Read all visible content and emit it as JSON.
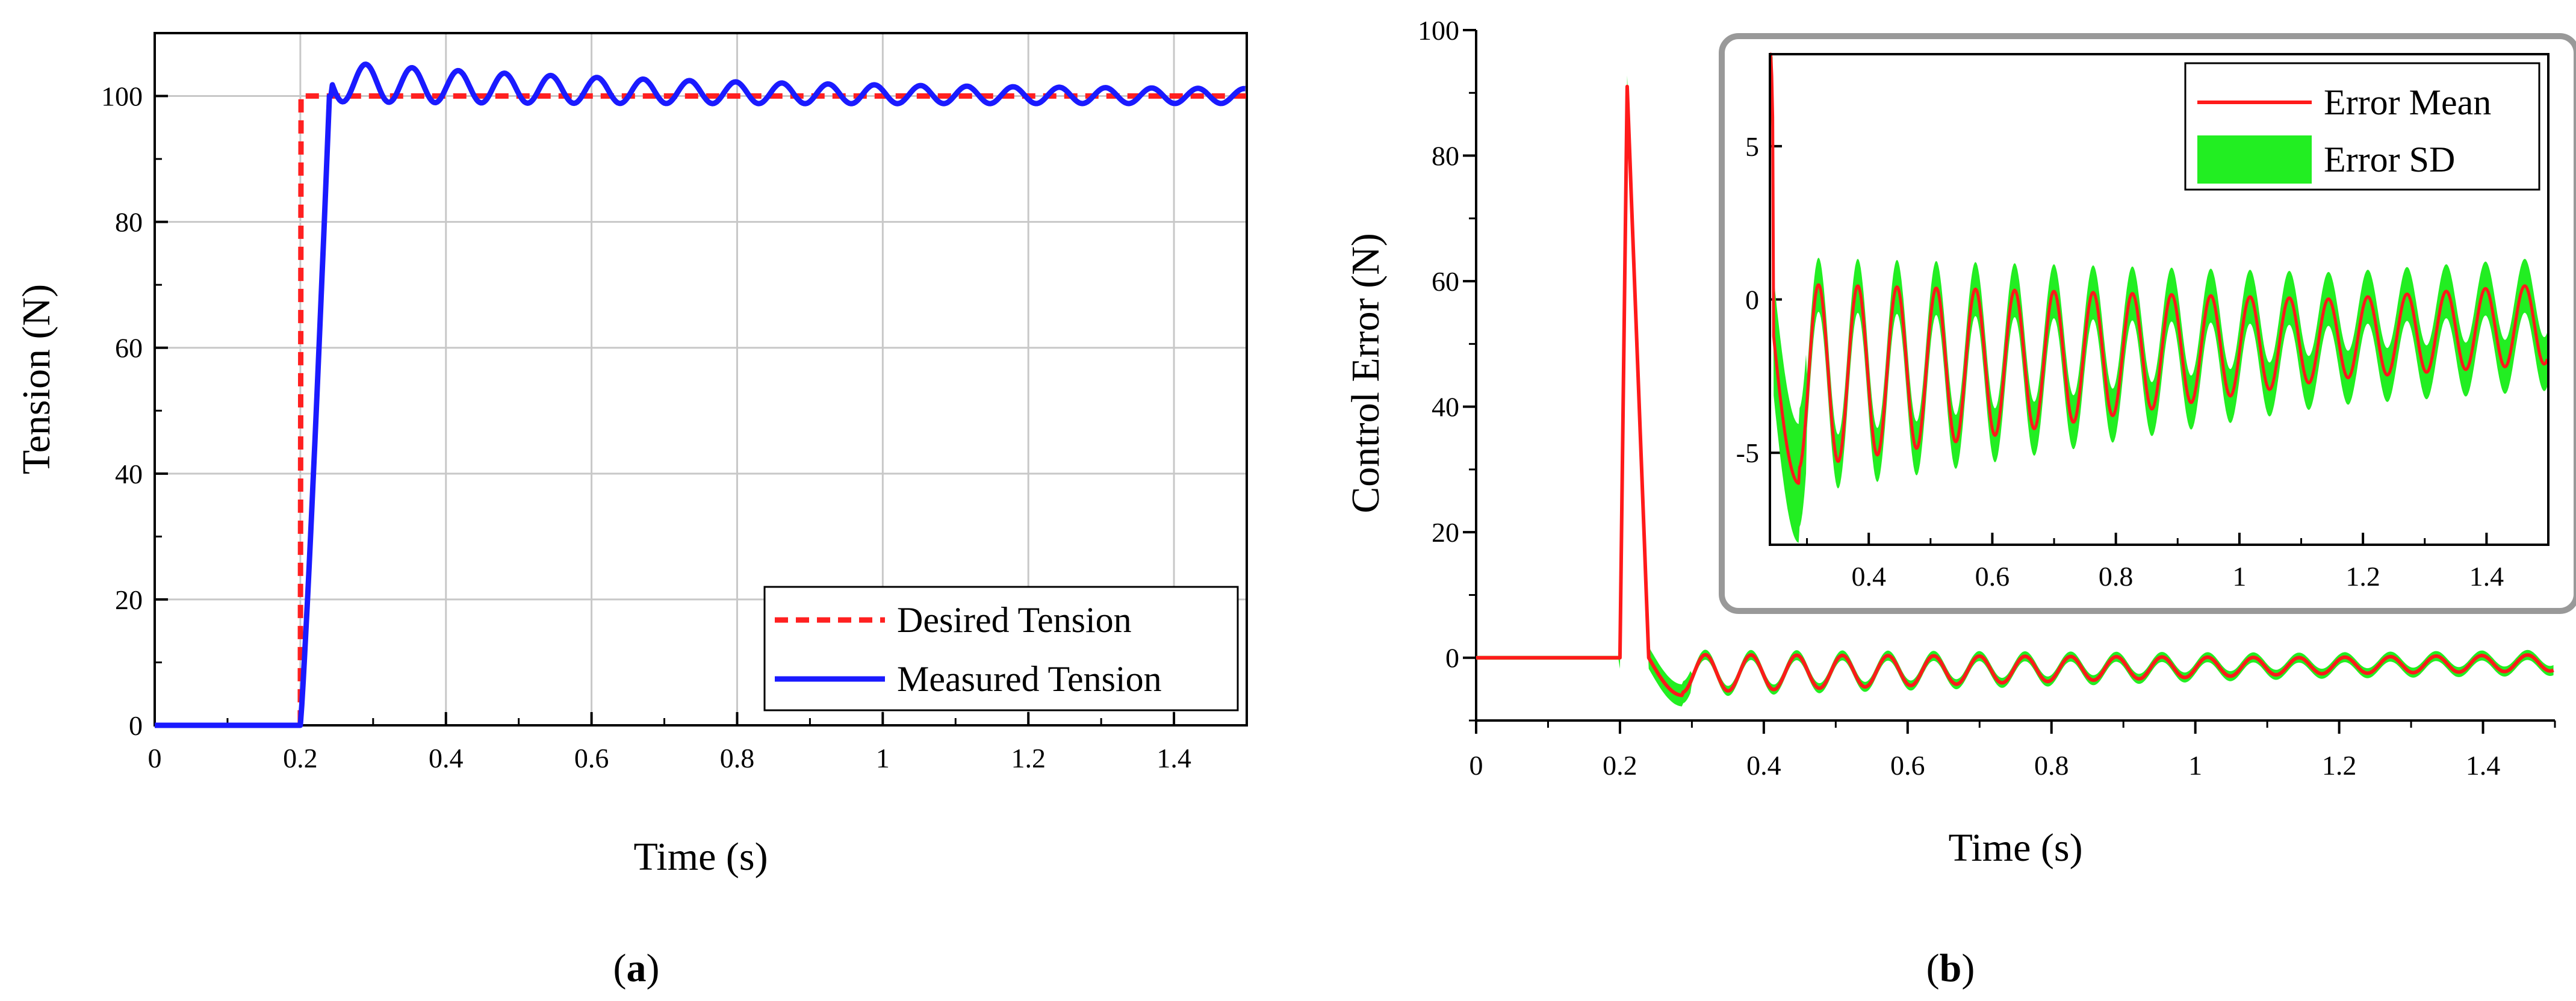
{
  "chart_data": [
    {
      "type": "line",
      "panel_label": "a",
      "xlabel": "Time (s)",
      "ylabel": "Tension (N)",
      "xlim": [
        0,
        1.5
      ],
      "ylim": [
        0,
        110
      ],
      "xticks": [
        0,
        0.2,
        0.4,
        0.6,
        0.8,
        1,
        1.2,
        1.4
      ],
      "xtick_labels": [
        "0",
        "0.2",
        "0.4",
        "0.6",
        "0.8",
        "1",
        "1.2",
        "1.4"
      ],
      "yticks": [
        0,
        20,
        40,
        60,
        80,
        100
      ],
      "ytick_labels": [
        "0",
        "20",
        "40",
        "60",
        "80",
        "100"
      ],
      "grid": true,
      "legend_position": "bottom-right",
      "series": [
        {
          "name": "Desired Tension",
          "color": "#ff2020",
          "style": "dashed",
          "x": [
            0,
            0.2,
            0.2,
            0.201,
            1.5
          ],
          "y": [
            0,
            0,
            0,
            100,
            100
          ]
        },
        {
          "name": "Measured Tension",
          "color": "#1a1aff",
          "style": "solid",
          "model": {
            "rise_start": 0.2,
            "rise_end": 0.24,
            "settle_value": 100,
            "settle_at": 0.244,
            "osc_period": 0.0635,
            "osc_phase": 0.04,
            "mean_start": 102.3,
            "mean_end": 100.0,
            "amp_start": 3.2,
            "amp_end": 1.0,
            "decay_tau": 0.5
          }
        }
      ]
    },
    {
      "type": "line",
      "panel_label": "b",
      "xlabel": "Time (s)",
      "ylabel": "Control Error (N)",
      "xlim": [
        0,
        1.5
      ],
      "ylim": [
        -10,
        100
      ],
      "xticks": [
        0,
        0.2,
        0.4,
        0.6,
        0.8,
        1,
        1.2,
        1.4
      ],
      "xtick_labels": [
        "0",
        "0.2",
        "0.4",
        "0.6",
        "0.8",
        "1",
        "1.2",
        "1.4"
      ],
      "yticks": [
        0,
        20,
        40,
        60,
        80,
        100
      ],
      "ytick_labels": [
        "0",
        "20",
        "40",
        "60",
        "80",
        "100"
      ],
      "grid": false,
      "series": [
        {
          "name": "Error Mean",
          "color": "#ff1a1a",
          "model": {
            "spike_start": 0.2,
            "spike_peak_time": 0.21,
            "spike_peak": 91,
            "spike_end": 0.24,
            "trough_time": 0.287,
            "trough_value": -6,
            "osc_period": 0.0635,
            "osc_phase": 0.0,
            "amp_start": 3.0,
            "amp_end": 1.3,
            "mean_start": -2.5,
            "mean_end": -0.8
          }
        },
        {
          "name": "Error SD",
          "color": "#22ee22",
          "band_halfwidth": 0.8
        }
      ],
      "inset": {
        "xlim": [
          0.24,
          1.5
        ],
        "ylim": [
          -8,
          8
        ],
        "xticks": [
          0.4,
          0.6,
          0.8,
          1,
          1.2,
          1.4
        ],
        "xtick_labels": [
          "0.4",
          "0.6",
          "0.8",
          "1",
          "1.2",
          "1.4"
        ],
        "yticks": [
          -5,
          0,
          5
        ],
        "ytick_labels": [
          "-5",
          "0",
          "5"
        ],
        "legend_position": "top-right",
        "legend": [
          "Error Mean",
          "Error SD"
        ]
      }
    }
  ],
  "labels": {
    "panel_a": "a",
    "panel_b": "b"
  }
}
